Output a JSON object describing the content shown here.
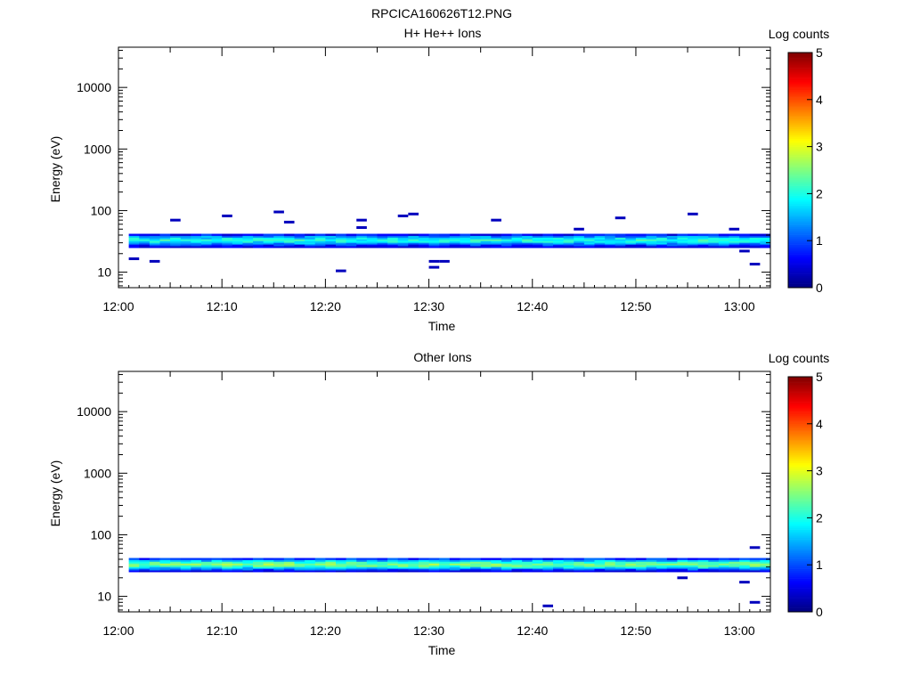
{
  "figure": {
    "title": "RPCICA160626T12.PNG"
  },
  "colors": {
    "axis": "#000000",
    "background": "#ffffff"
  },
  "chart_data": [
    {
      "type": "heatmap",
      "title": "H+ He++ Ions",
      "xlabel": "Time",
      "ylabel": "Energy (eV)",
      "yscale": "log",
      "xlim_minutes_after_noon": [
        0,
        63
      ],
      "ylim": [
        5.6,
        45000
      ],
      "x_ticks": [
        "12:00",
        "12:10",
        "12:20",
        "12:30",
        "12:40",
        "12:50",
        "13:00"
      ],
      "y_ticks": [
        "10",
        "100",
        "1000",
        "10000"
      ],
      "colorbar": {
        "label": "Log counts",
        "range": [
          0,
          5
        ],
        "ticks": [
          "0",
          "1",
          "2",
          "3",
          "4",
          "5"
        ]
      },
      "band": {
        "energy_low": 25,
        "energy_high": 42,
        "core_log_counts": 2.0
      },
      "isolated_counts": [
        {
          "time": "12:01",
          "energy": 16.5
        },
        {
          "time": "12:03",
          "energy": 15
        },
        {
          "time": "12:05",
          "energy": 70
        },
        {
          "time": "12:10",
          "energy": 82
        },
        {
          "time": "12:15",
          "energy": 95
        },
        {
          "time": "12:16",
          "energy": 65
        },
        {
          "time": "12:21",
          "energy": 10.5
        },
        {
          "time": "12:23",
          "energy": 70
        },
        {
          "time": "12:23",
          "energy": 53
        },
        {
          "time": "12:27",
          "energy": 82
        },
        {
          "time": "12:28",
          "energy": 88
        },
        {
          "time": "12:30",
          "energy": 15
        },
        {
          "time": "12:30",
          "energy": 12
        },
        {
          "time": "12:31",
          "energy": 15
        },
        {
          "time": "12:36",
          "energy": 70
        },
        {
          "time": "12:44",
          "energy": 50
        },
        {
          "time": "12:48",
          "energy": 76
        },
        {
          "time": "12:55",
          "energy": 88
        },
        {
          "time": "12:59",
          "energy": 50
        },
        {
          "time": "13:00",
          "energy": 22
        },
        {
          "time": "13:01",
          "energy": 13.5
        }
      ]
    },
    {
      "type": "heatmap",
      "title": "Other Ions",
      "xlabel": "Time",
      "ylabel": "Energy (eV)",
      "yscale": "log",
      "xlim_minutes_after_noon": [
        0,
        63
      ],
      "ylim": [
        5.6,
        45000
      ],
      "x_ticks": [
        "12:00",
        "12:10",
        "12:20",
        "12:30",
        "12:40",
        "12:50",
        "13:00"
      ],
      "y_ticks": [
        "10",
        "100",
        "1000",
        "10000"
      ],
      "colorbar": {
        "label": "Log counts",
        "range": [
          0,
          5
        ],
        "ticks": [
          "0",
          "1",
          "2",
          "3",
          "4",
          "5"
        ]
      },
      "band": {
        "energy_low": 25,
        "energy_high": 42,
        "core_log_counts": 2.5
      },
      "isolated_counts": [
        {
          "time": "12:41",
          "energy": 7
        },
        {
          "time": "12:54",
          "energy": 20
        },
        {
          "time": "13:00",
          "energy": 17
        },
        {
          "time": "13:01",
          "energy": 8
        },
        {
          "time": "13:01",
          "energy": 62
        }
      ]
    }
  ]
}
